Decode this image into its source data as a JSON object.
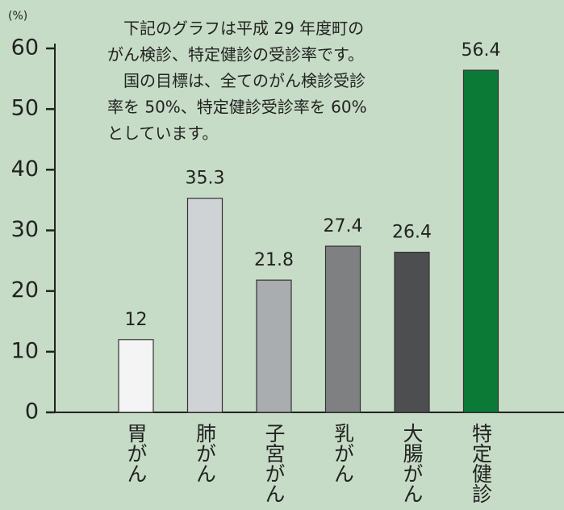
{
  "chart_data": {
    "type": "bar",
    "y_unit": "(%)",
    "annotation": [
      "　下記のグラフは平成 29 年度町の",
      "がん検診、特定健診の受診率です。",
      "　国の目標は、全てのがん検診受診",
      "率を 50%、特定健診受診率を 60%",
      "としています。"
    ],
    "categories": [
      "胃がん",
      "肺がん",
      "子宮がん",
      "乳がん",
      "大腸がん",
      "特定健診"
    ],
    "values": [
      12,
      35.3,
      21.8,
      27.4,
      26.4,
      56.4
    ],
    "colors": [
      "#f4f4f4",
      "#d0d3d6",
      "#a9adb0",
      "#7e8082",
      "#4d4e50",
      "#0b7a36"
    ],
    "ylim": [
      0,
      60
    ],
    "yticks": [
      0,
      10,
      20,
      30,
      40,
      50,
      60
    ]
  }
}
